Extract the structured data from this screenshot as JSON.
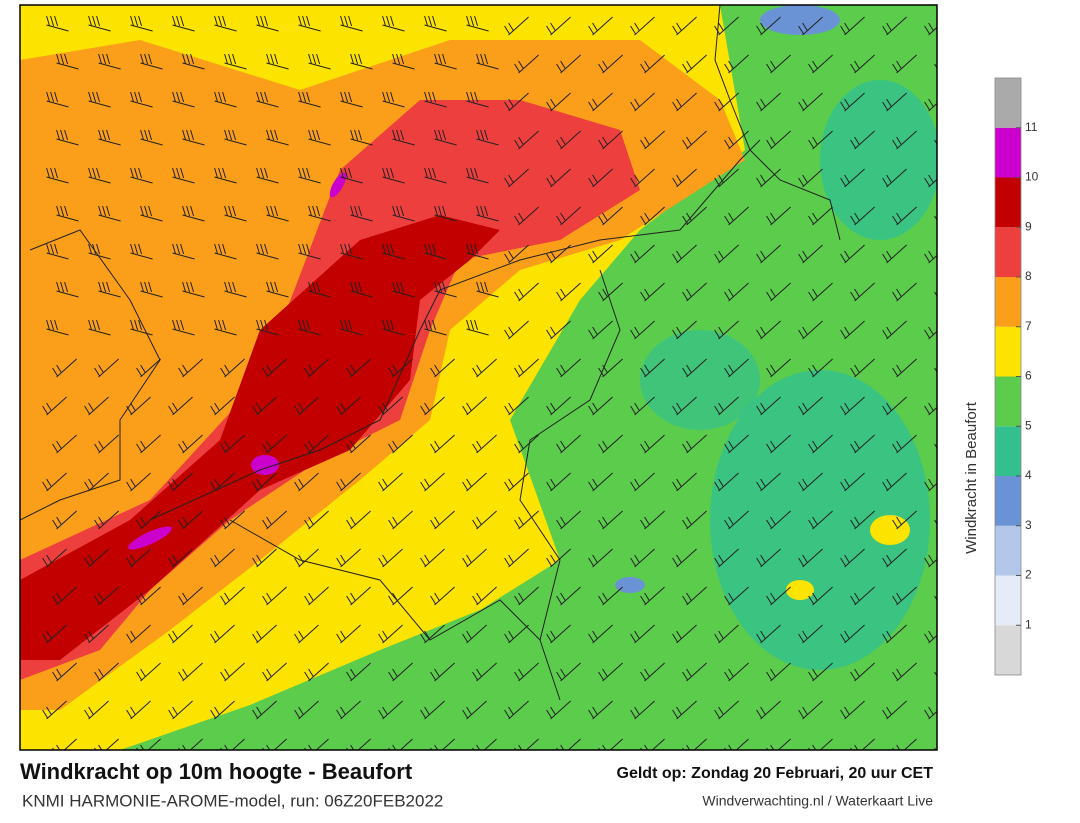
{
  "footer": {
    "title": "Windkracht op 10m hoogte - Beaufort",
    "valid_time": "Geldt op: Zondag 20 Februari, 20 uur CET",
    "subtitle": "KNMI HARMONIE-AROME-model, run: 06Z20FEB2022",
    "credit": "Windverwachting.nl / Waterkaart Live"
  },
  "legend": {
    "title": "Windkracht in Beaufort",
    "range": [
      0,
      12
    ],
    "ticks": [
      1,
      2,
      3,
      4,
      5,
      6,
      7,
      8,
      9,
      10,
      11
    ],
    "colors": [
      "#d8d8d8",
      "#e6ecf7",
      "#b3c7ea",
      "#6a93d6",
      "#33c08e",
      "#5ccc4c",
      "#fde300",
      "#fb9e1a",
      "#ee3f3f",
      "#c20000",
      "#cc00cc",
      "#aaaaaa"
    ]
  }
}
